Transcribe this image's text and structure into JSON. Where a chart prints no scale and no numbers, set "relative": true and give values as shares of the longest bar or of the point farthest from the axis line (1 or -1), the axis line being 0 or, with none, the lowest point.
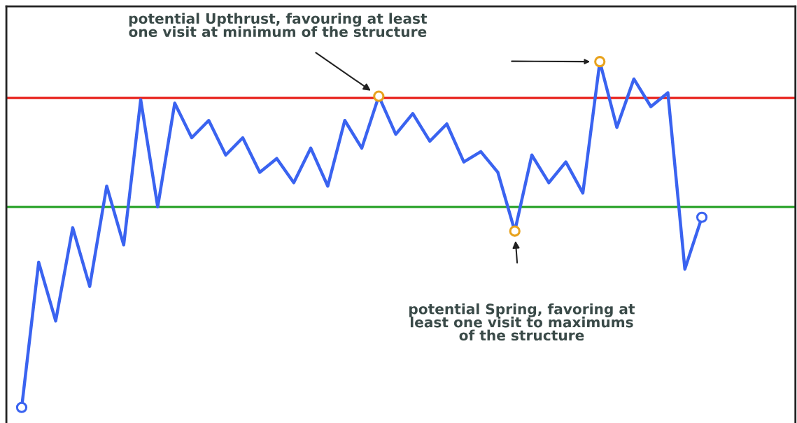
{
  "chart_data": {
    "type": "line",
    "relative": true,
    "categories": [
      null,
      null,
      null,
      null,
      null,
      null,
      null,
      null,
      null,
      null,
      null,
      null,
      null,
      null,
      null,
      null,
      null,
      null,
      null,
      null,
      null,
      null,
      null,
      null,
      null,
      null,
      null,
      null,
      null,
      null,
      null,
      null,
      null,
      null,
      null,
      null,
      null,
      null,
      null,
      null,
      null
    ],
    "series": [
      {
        "color": "#3a63f0",
        "values": [
          0,
          0.42,
          0.25,
          0.52,
          0.35,
          0.64,
          0.47,
          0.89,
          0.58,
          0.88,
          0.78,
          0.83,
          0.73,
          0.78,
          0.68,
          0.72,
          0.65,
          0.75,
          0.64,
          0.83,
          0.75,
          0.9,
          0.79,
          0.85,
          0.77,
          0.82,
          0.71,
          0.74,
          0.68,
          0.51,
          0.73,
          0.65,
          0.71,
          0.62,
          1,
          0.81,
          0.95,
          0.87,
          0.91,
          0.4,
          0.55
        ]
      }
    ],
    "ref_lines": [
      {
        "axis": "y",
        "value": 0.895,
        "color": "#e8211b"
      },
      {
        "axis": "y",
        "value": 0.58,
        "color": "#1f9e1f"
      }
    ],
    "annotations": [
      "potential Upthrust, favouring at least\none visit at minimum of the structure",
      "potential Spring, favoring at\nleast one visit to maximums\nof the structure"
    ]
  }
}
